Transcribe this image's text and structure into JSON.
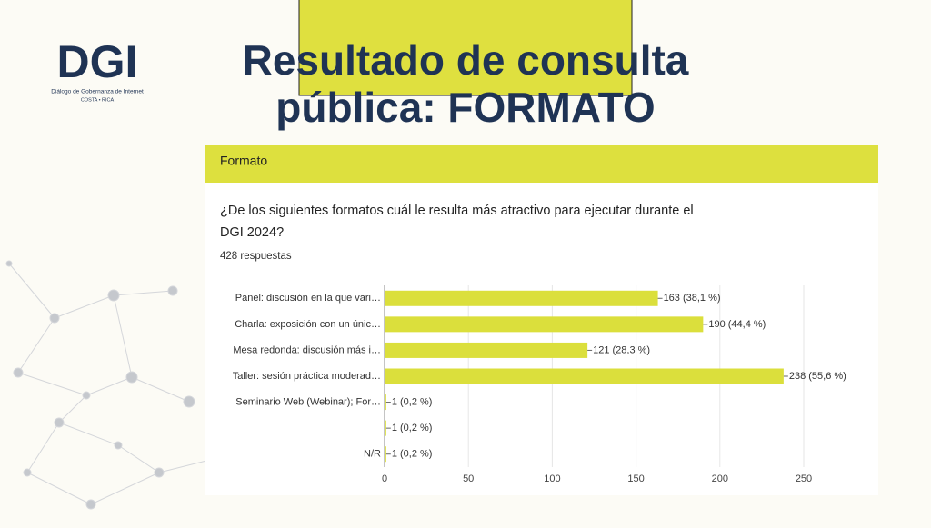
{
  "slide": {
    "title_lines": [
      "Resultado de consulta",
      "pública: FORMATO"
    ],
    "logo": {
      "main": "DGI",
      "sub": "Diálogo de Gobernanza de Internet",
      "country": "COSTA • RICA"
    },
    "section": "Formato",
    "question_lines": [
      "¿De los siguientes formatos cuál le resulta más atractivo para ejecutar durante el",
      "DGI 2024?"
    ],
    "responses": "428 respuestas"
  },
  "chart_data": {
    "type": "hbar",
    "categories": [
      "Panel: discusión en la que vari…",
      "Charla: exposición con un únic…",
      "Mesa redonda: discusión más i…",
      "Taller: sesión práctica moderad…",
      "Seminario Web (Webinar); For…",
      null,
      "N/R"
    ],
    "values": [
      163,
      190,
      121,
      238,
      1,
      1,
      1
    ],
    "value_labels": [
      "163 (38,1 %)",
      "190 (44,4 %)",
      "121 (28,3 %)",
      "238 (55,6 %)",
      "1 (0,2 %)",
      "1 (0,2 %)",
      "1 (0,2 %)"
    ],
    "color": "#dbdf3c",
    "xlim": [
      0,
      250
    ],
    "xticks": [
      0,
      50,
      100,
      150,
      200,
      250
    ],
    "grid": true
  }
}
